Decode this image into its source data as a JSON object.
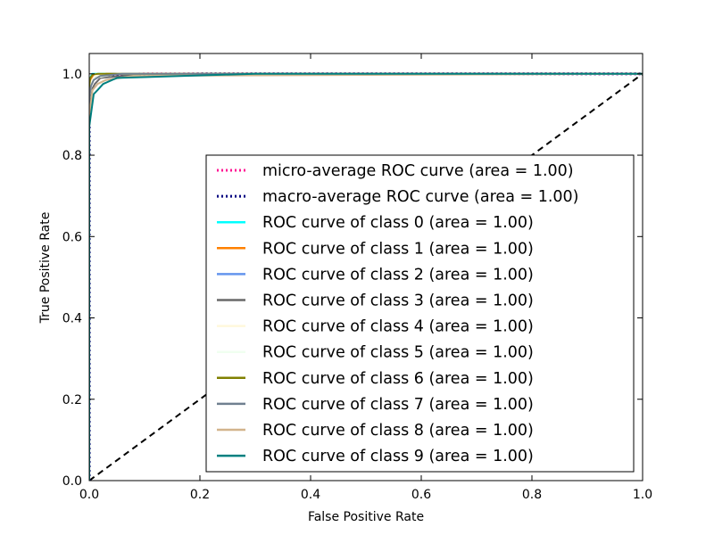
{
  "chart_data": {
    "type": "line",
    "title": "",
    "xlabel": "False Positive Rate",
    "ylabel": "True Positive Rate",
    "xlim": [
      0.0,
      1.0
    ],
    "ylim": [
      0.0,
      1.05
    ],
    "x_ticks": [
      "0.0",
      "0.2",
      "0.4",
      "0.6",
      "0.8",
      "1.0"
    ],
    "y_ticks": [
      "0.0",
      "0.2",
      "0.4",
      "0.6",
      "0.8",
      "1.0"
    ],
    "grid": false,
    "legend_position": "lower-right",
    "series": [
      {
        "name": "micro-average ROC curve (area = 1.00)",
        "color": "#ff1493",
        "style": "dotted",
        "x": [
          0,
          0,
          0.001,
          0.002,
          0.005,
          0.01,
          0.03,
          0.1,
          0.2,
          1.0
        ],
        "y": [
          0,
          0.9,
          0.97,
          0.985,
          0.99,
          0.995,
          0.998,
          1.0,
          1.0,
          1.0
        ]
      },
      {
        "name": "macro-average ROC curve (area = 1.00)",
        "color": "#000080",
        "style": "dotted",
        "x": [
          0,
          0,
          0.001,
          0.003,
          0.006,
          0.01,
          0.03,
          0.1,
          0.2,
          1.0
        ],
        "y": [
          0,
          0.88,
          0.96,
          0.98,
          0.99,
          0.994,
          0.997,
          0.999,
          1.0,
          1.0
        ]
      },
      {
        "name": "ROC curve of class 0 (area = 1.00)",
        "color": "#00ffff",
        "style": "solid",
        "x": [
          0,
          0,
          0.002,
          0.005,
          0.02,
          1.0
        ],
        "y": [
          0,
          0.97,
          0.99,
          1.0,
          1.0,
          1.0
        ]
      },
      {
        "name": "ROC curve of class 1 (area = 1.00)",
        "color": "#ff8000",
        "style": "solid",
        "x": [
          0,
          0,
          0.003,
          0.008,
          0.03,
          1.0
        ],
        "y": [
          0,
          0.96,
          0.985,
          0.995,
          1.0,
          1.0
        ]
      },
      {
        "name": "ROC curve of class 2 (area = 1.00)",
        "color": "#6495ed",
        "style": "solid",
        "x": [
          0,
          0,
          0.003,
          0.01,
          0.04,
          1.0
        ],
        "y": [
          0,
          0.95,
          0.98,
          0.995,
          1.0,
          1.0
        ]
      },
      {
        "name": "ROC curve of class 3 (area = 1.00)",
        "color": "#696969",
        "style": "solid",
        "x": [
          0,
          0,
          0.004,
          0.01,
          0.02,
          0.06,
          0.1,
          1.0
        ],
        "y": [
          0,
          0.93,
          0.96,
          0.975,
          0.99,
          0.995,
          1.0,
          1.0
        ]
      },
      {
        "name": "ROC curve of class 4 (area = 1.00)",
        "color": "#fff8dc",
        "style": "solid",
        "x": [
          0,
          0,
          0.003,
          0.01,
          0.05,
          1.0
        ],
        "y": [
          0,
          0.95,
          0.98,
          0.995,
          1.0,
          1.0
        ]
      },
      {
        "name": "ROC curve of class 5 (area = 1.00)",
        "color": "#f0fff0",
        "style": "solid",
        "x": [
          0,
          0,
          0.004,
          0.01,
          0.05,
          1.0
        ],
        "y": [
          0,
          0.94,
          0.975,
          0.99,
          1.0,
          1.0
        ]
      },
      {
        "name": "ROC curve of class 6 (area = 1.00)",
        "color": "#808000",
        "style": "solid",
        "x": [
          0,
          0,
          0.002,
          0.006,
          0.015,
          1.0
        ],
        "y": [
          0,
          0.97,
          0.99,
          0.998,
          1.0,
          1.0
        ]
      },
      {
        "name": "ROC curve of class 7 (area = 1.00)",
        "color": "#708090",
        "style": "solid",
        "x": [
          0,
          0,
          0.003,
          0.008,
          0.02,
          0.06,
          1.0
        ],
        "y": [
          0,
          0.94,
          0.97,
          0.985,
          0.995,
          1.0,
          1.0
        ]
      },
      {
        "name": "ROC curve of class 8 (area = 1.00)",
        "color": "#d2b48c",
        "style": "solid",
        "x": [
          0,
          0,
          0.003,
          0.006,
          0.015,
          0.03,
          0.08,
          1.0
        ],
        "y": [
          0,
          0.9,
          0.93,
          0.96,
          0.975,
          0.985,
          0.995,
          1.0
        ]
      },
      {
        "name": "ROC curve of class 9 (area = 1.00)",
        "color": "#008080",
        "style": "solid",
        "x": [
          0,
          0,
          0.004,
          0.008,
          0.015,
          0.025,
          0.05,
          0.1,
          0.17,
          0.3,
          1.0
        ],
        "y": [
          0,
          0.87,
          0.91,
          0.95,
          0.96,
          0.975,
          0.99,
          0.992,
          0.995,
          1.0,
          1.0
        ]
      }
    ],
    "reference_line": {
      "x": [
        0,
        1
      ],
      "y": [
        0,
        1
      ],
      "color": "#000000",
      "style": "dashed"
    }
  }
}
